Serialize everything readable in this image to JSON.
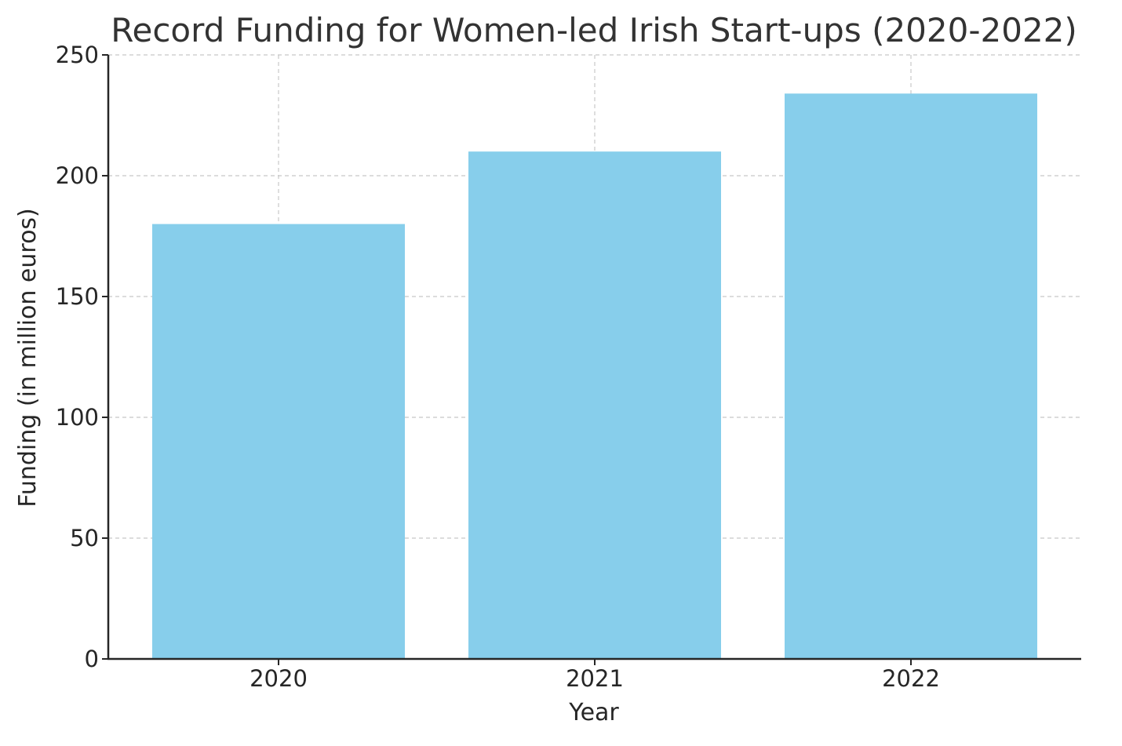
{
  "chart_data": {
    "type": "bar",
    "title": "Record Funding for Women-led Irish Start-ups (2020-2022)",
    "xlabel": "Year",
    "ylabel": "Funding (in million euros)",
    "categories": [
      "2020",
      "2021",
      "2022"
    ],
    "values": [
      180,
      210,
      234
    ],
    "ylim": [
      0,
      250
    ],
    "yticks": [
      "0",
      "50",
      "100",
      "150",
      "200",
      "250"
    ],
    "grid": true,
    "bar_color": "#87CEEB",
    "axis_color": "#262626",
    "grid_color": "#c8c8c8"
  }
}
